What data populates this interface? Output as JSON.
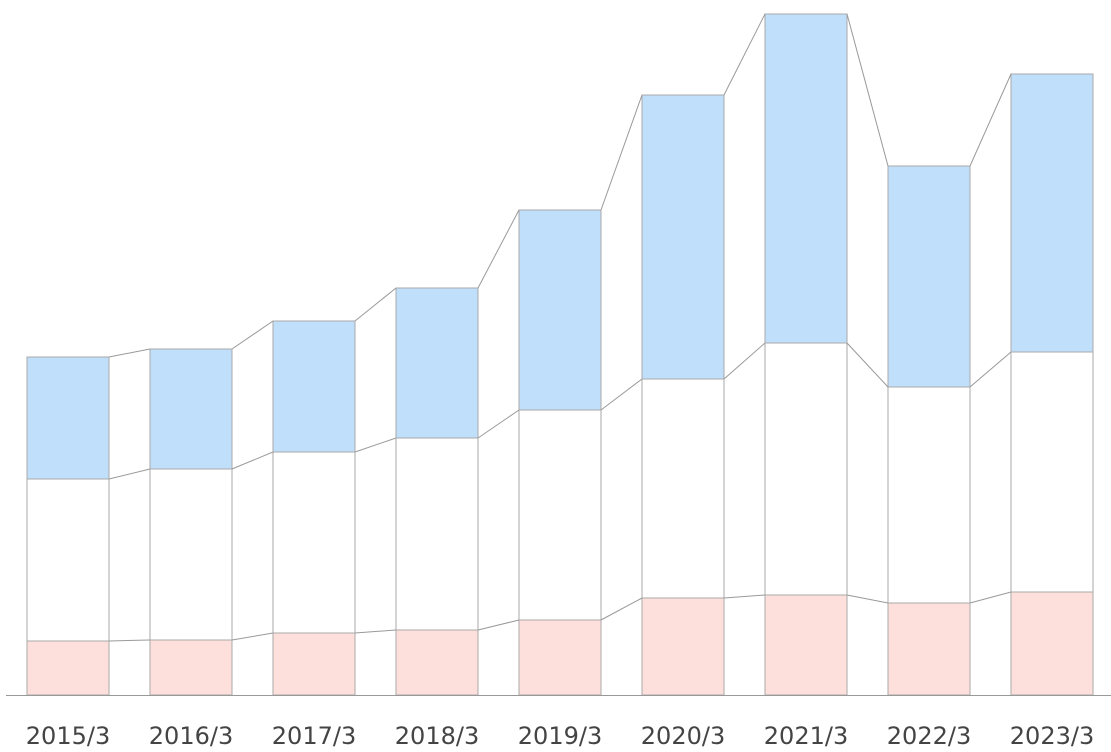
{
  "chart_data": {
    "type": "stacked_bar",
    "categories": [
      "2015/3",
      "2016/3",
      "2017/3",
      "2018/3",
      "2019/3",
      "2020/3",
      "2021/3",
      "2022/3",
      "2023/3"
    ],
    "series": [
      {
        "color": "#fde0dc",
        "values": [
          54,
          55,
          62,
          65,
          75,
          97,
          100,
          92,
          103
        ]
      },
      {
        "color": "#ffffff",
        "values": [
          162,
          171,
          181,
          192,
          210,
          219,
          252,
          216,
          240
        ]
      },
      {
        "color": "#c0dffb",
        "values": [
          122,
          120,
          131,
          150,
          200,
          284,
          329,
          221,
          278
        ]
      }
    ],
    "ylim": [
      0,
      700
    ]
  }
}
